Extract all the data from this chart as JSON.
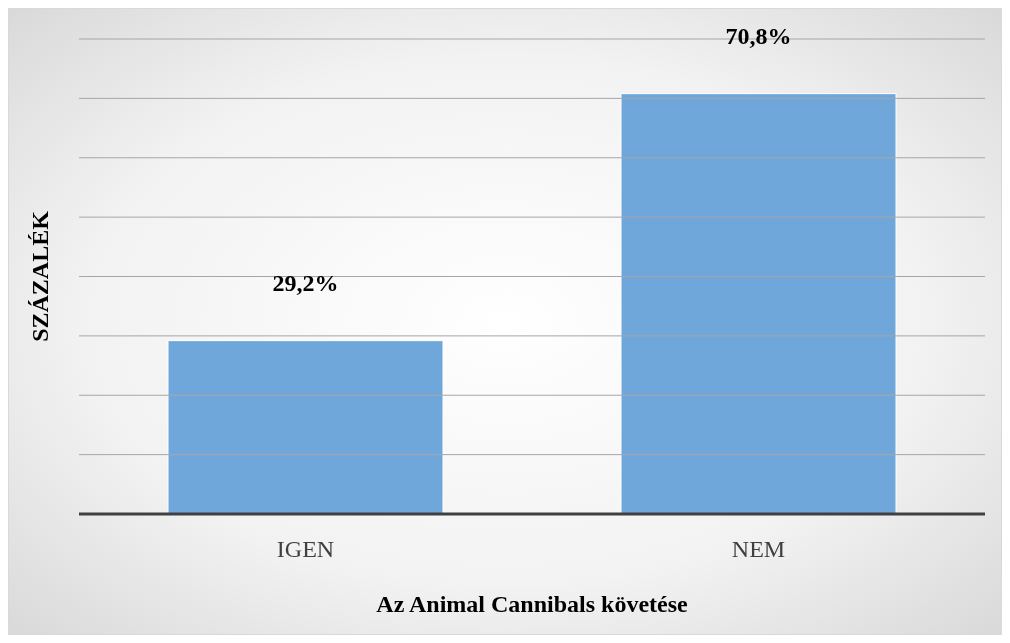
{
  "chart_data": {
    "type": "bar",
    "xlabel": "Az Animal Cannibals követése",
    "ylabel": "SZÁZALÉK",
    "categories": [
      "IGEN",
      "NEM"
    ],
    "values": [
      29.2,
      70.8
    ],
    "value_labels": [
      "29,2%",
      "70,8%"
    ],
    "color": "#70a7da",
    "ylim": [
      0,
      80
    ],
    "yticks": [
      {
        "value": 0,
        "label": null
      },
      {
        "value": 10,
        "label": null
      },
      {
        "value": 20,
        "label": null
      },
      {
        "value": 30,
        "label": null
      },
      {
        "value": 40,
        "label": null
      },
      {
        "value": 50,
        "label": null
      },
      {
        "value": 60,
        "label": null
      },
      {
        "value": 70,
        "label": null
      },
      {
        "value": 80,
        "label": null
      }
    ],
    "grid": "y",
    "tick_labels": "x"
  }
}
